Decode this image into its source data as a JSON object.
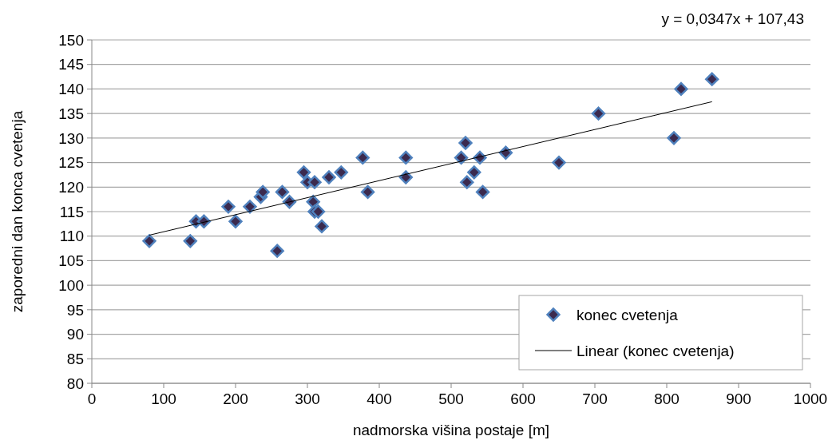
{
  "chart_data": {
    "type": "scatter",
    "xlabel": "nadmorska višina postaje [m]",
    "ylabel": "zaporedni dan konca cvetenja",
    "xlim": [
      0,
      1000
    ],
    "xticks": [
      0,
      100,
      200,
      300,
      400,
      500,
      600,
      700,
      800,
      900,
      1000
    ],
    "ylim": [
      80,
      150
    ],
    "yticks": [
      80,
      85,
      90,
      95,
      100,
      105,
      110,
      115,
      120,
      125,
      130,
      135,
      140,
      145,
      150
    ],
    "grid": "y",
    "legend": "bottom right",
    "annotations": [
      "y = 0,0347x + 107,43"
    ],
    "series": [
      {
        "name": "konec cvetenja",
        "marker": "diamond",
        "color": "#3b2a4e",
        "x": [
          80,
          137,
          145,
          156,
          190,
          200,
          220,
          235,
          238,
          258,
          265,
          275,
          295,
          300,
          308,
          310,
          310,
          315,
          320,
          330,
          347,
          377,
          384,
          437,
          437,
          514,
          520,
          522,
          532,
          540,
          544,
          576,
          650,
          705,
          810,
          820,
          863
        ],
        "values": [
          109,
          109,
          113,
          113,
          116,
          113,
          116,
          118,
          119,
          107,
          119,
          117,
          123,
          121,
          117,
          121,
          115,
          115,
          112,
          122,
          123,
          126,
          119,
          126,
          122,
          126,
          129,
          121,
          123,
          126,
          119,
          127,
          125,
          135,
          130,
          140,
          142
        ]
      },
      {
        "name": "Linear (konec cvetenja)",
        "type": "line",
        "color": "#000000",
        "x": [
          80,
          863
        ],
        "values": [
          110.2,
          137.4
        ],
        "marker": "none"
      }
    ]
  }
}
